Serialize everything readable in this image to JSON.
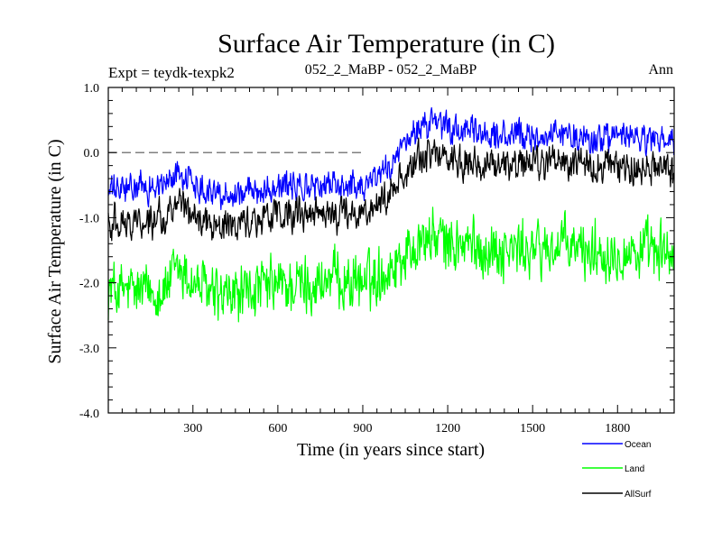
{
  "chart_data": {
    "type": "line",
    "title": "Surface Air Temperature (in C)",
    "subtitle_left": "Expt = teydk-texpk2",
    "subtitle_center": "052_2_MaBP - 052_2_MaBP",
    "subtitle_right": "Ann",
    "xlabel": "Time (in years since start)",
    "ylabel": "Surface Air Temperature (in C)",
    "xlim": [
      1,
      2000
    ],
    "ylim": [
      -4.0,
      1.0
    ],
    "x_ticks": [
      300,
      600,
      900,
      1200,
      1500,
      1800
    ],
    "x_tick_labels": [
      "300",
      "600",
      "900",
      "1200",
      "1500",
      "1800"
    ],
    "y_ticks": [
      1.0,
      0.0,
      -1.0,
      -2.0,
      -3.0,
      -4.0
    ],
    "y_tick_labels": [
      "1.0",
      "0.0",
      "-1.0",
      "-2.0",
      "-3.0",
      "-4.0"
    ],
    "reference_line": {
      "y": 0.0,
      "style": "dashed",
      "x_end": 900
    },
    "legend_position": "bottom-right, below plot",
    "series": [
      {
        "name": "Ocean",
        "color": "#0000ff",
        "x": [
          1,
          100,
          200,
          250,
          300,
          400,
          500,
          600,
          700,
          800,
          900,
          950,
          1000,
          1050,
          1100,
          1150,
          1200,
          1300,
          1400,
          1500,
          1600,
          1700,
          1800,
          1900,
          2000
        ],
        "values": [
          -0.6,
          -0.55,
          -0.5,
          -0.3,
          -0.45,
          -0.65,
          -0.6,
          -0.5,
          -0.55,
          -0.5,
          -0.5,
          -0.35,
          -0.2,
          0.1,
          0.4,
          0.45,
          0.35,
          0.3,
          0.25,
          0.25,
          0.3,
          0.2,
          0.25,
          0.2,
          0.15
        ],
        "noise_amplitude": 0.18
      },
      {
        "name": "Land",
        "color": "#00ff00",
        "x": [
          1,
          100,
          200,
          250,
          300,
          400,
          500,
          600,
          700,
          800,
          900,
          950,
          1000,
          1050,
          1100,
          1150,
          1200,
          1300,
          1400,
          1500,
          1600,
          1700,
          1800,
          1900,
          2000
        ],
        "values": [
          -2.1,
          -2.15,
          -2.1,
          -1.8,
          -2.0,
          -2.25,
          -2.15,
          -2.05,
          -2.05,
          -1.95,
          -2.0,
          -1.9,
          -1.75,
          -1.55,
          -1.35,
          -1.3,
          -1.4,
          -1.45,
          -1.5,
          -1.5,
          -1.45,
          -1.5,
          -1.5,
          -1.55,
          -1.55
        ],
        "noise_amplitude": 0.35
      },
      {
        "name": "AllSurf",
        "color": "#000000",
        "x": [
          1,
          100,
          200,
          250,
          300,
          400,
          500,
          600,
          700,
          800,
          900,
          950,
          1000,
          1050,
          1100,
          1150,
          1200,
          1300,
          1400,
          1500,
          1600,
          1700,
          1800,
          1900,
          2000
        ],
        "values": [
          -1.05,
          -1.05,
          -1.0,
          -0.8,
          -0.95,
          -1.15,
          -1.05,
          -0.95,
          -1.0,
          -0.95,
          -0.95,
          -0.8,
          -0.6,
          -0.3,
          -0.05,
          -0.05,
          -0.1,
          -0.15,
          -0.2,
          -0.2,
          -0.15,
          -0.2,
          -0.2,
          -0.25,
          -0.3
        ],
        "noise_amplitude": 0.2
      }
    ]
  }
}
